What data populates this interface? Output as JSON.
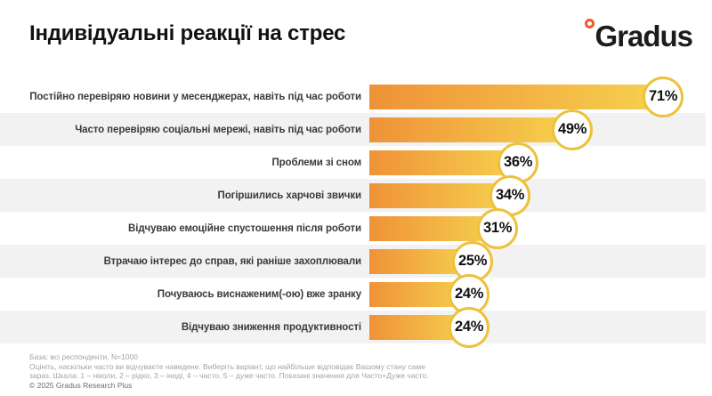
{
  "header": {
    "title": "Індивідуальні реакції на стрес",
    "logo_text": "Gradus"
  },
  "chart_data": {
    "type": "bar",
    "orientation": "horizontal",
    "unit": "%",
    "categories": [
      "Постійно перевіряю новини у месенджерах, навіть під час роботи",
      "Часто перевіряю соціальні мережі, навіть під час роботи",
      "Проблеми зі сном",
      "Погіршились харчові звички",
      "Відчуваю емоційне спустошення після роботи",
      "Втрачаю інтерес до справ, які раніше захоплювали",
      "Почуваюсь виснаженим(-ою) вже зранку",
      "Відчуваю зниження продуктивності"
    ],
    "values": [
      71,
      49,
      36,
      34,
      31,
      25,
      24,
      24
    ],
    "value_labels": [
      "71%",
      "49%",
      "36%",
      "34%",
      "31%",
      "25%",
      "24%",
      "24%"
    ],
    "xlim": [
      0,
      100
    ],
    "grid": false,
    "legend": false,
    "colors": {
      "bar_gradient_start": "#EF9238",
      "bar_gradient_end": "#F6D14E",
      "bubble_border": "#EDC13C",
      "row_alt_background": "#F2F2F2",
      "logo_ring": "#ED5A2B"
    }
  },
  "footnote": {
    "base_line": "База: всі респонденти, N=1000",
    "question_line1": "Оцініть, наскільки часто ви відчуваєте наведене. Виберіть варіант, що найбільше відповідає Вашому стану саме",
    "question_line2": "зараз. Шкала: 1 – ніколи, 2 – рідко, 3 – іноді, 4 – часто, 5 – дуже часто. Показані значення для Часто+Дуже часто.",
    "copyright": "© 2025 Gradus Research Plus"
  }
}
